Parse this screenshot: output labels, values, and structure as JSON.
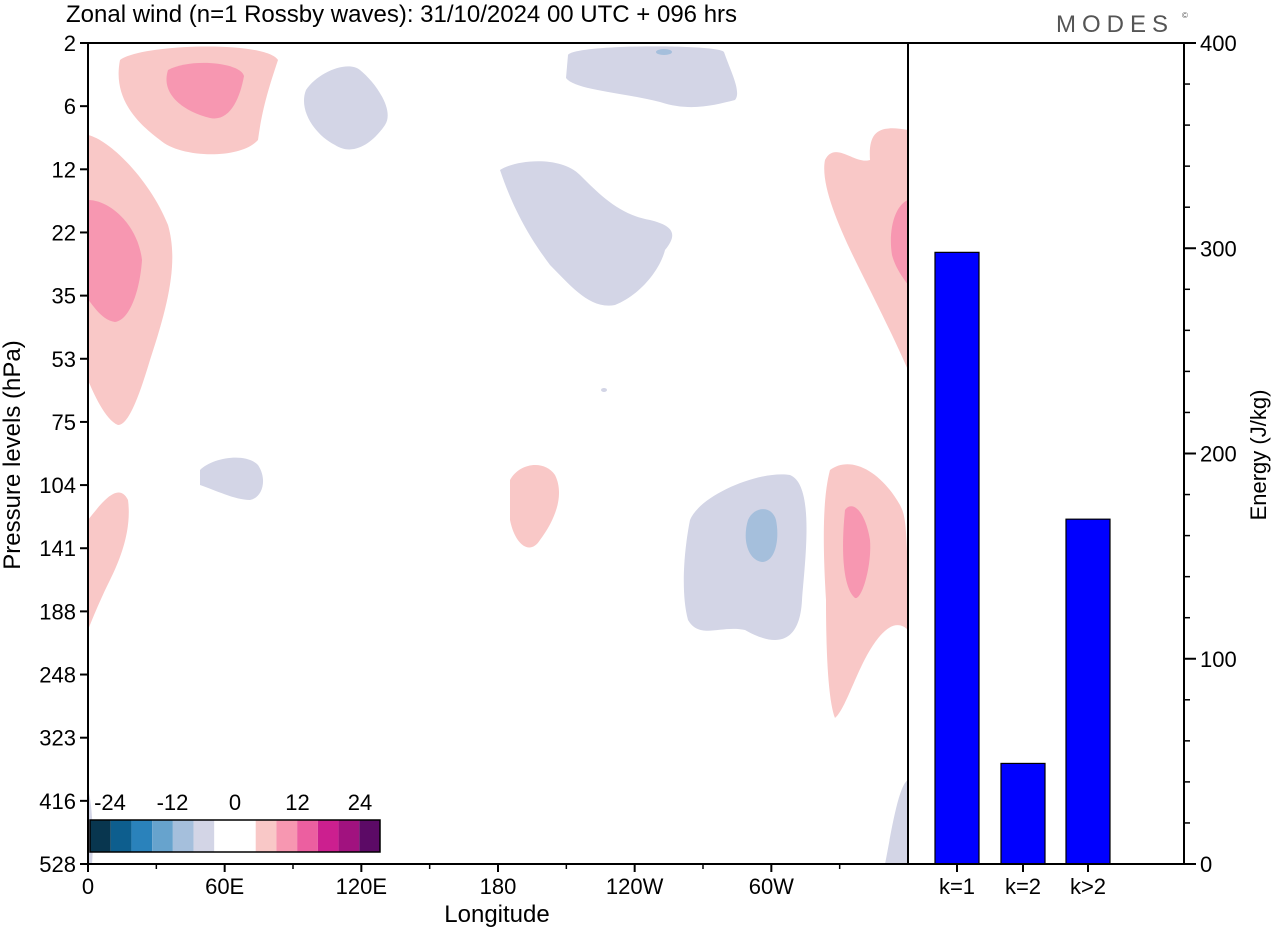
{
  "header": {
    "title": "Zonal wind (n=1 Rossby waves):  31/10/2024  00 UTC  + 096 hrs",
    "brand": "MODES",
    "brand_mark": "©"
  },
  "chart_data": [
    {
      "type": "heatmap",
      "title": "Zonal wind (n=1 Rossby waves):  31/10/2024  00 UTC  + 096 hrs",
      "xlabel": "Longitude",
      "ylabel": "Pressure levels (hPa)",
      "x_ticks": [
        "0",
        "60E",
        "120E",
        "180",
        "120W",
        "60W"
      ],
      "y_ticks": [
        "2",
        "6",
        "12",
        "22",
        "35",
        "53",
        "75",
        "104",
        "141",
        "188",
        "248",
        "323",
        "416",
        "528"
      ],
      "y_scale": "pressure levels, top to bottom",
      "colorbar": {
        "labels": [
          "-24",
          "-12",
          "0",
          "12",
          "24"
        ],
        "colors": [
          "#08364f",
          "#0d5e8e",
          "#2a82bb",
          "#67a3cd",
          "#a5bfdc",
          "#d3d5e6",
          "#ffffff",
          "#ffffff",
          "#f9c8c7",
          "#f797b1",
          "#ec5fa0",
          "#cc1f8f",
          "#a1127f",
          "#5c0a66"
        ]
      },
      "regions": [
        {
          "lon": 27,
          "level": "3-6",
          "sign": "positive",
          "peak_level": 2
        },
        {
          "lon": 95,
          "level": "3-12",
          "sign": "negative",
          "peak_level": 1
        },
        {
          "lon": 8,
          "level": "12-75",
          "sign": "positive",
          "peak_level": 2
        },
        {
          "lon": 205,
          "level": "12-35",
          "sign": "negative",
          "peak_level": 1
        },
        {
          "lon": 300,
          "level": "2-6",
          "sign": "negative",
          "peak_level": 1
        },
        {
          "lon": 352,
          "level": "12-53",
          "sign": "positive",
          "peak_level": 2
        },
        {
          "lon": 195,
          "level": "104-141",
          "sign": "positive",
          "peak_level": 1
        },
        {
          "lon": 305,
          "level": "104-188",
          "sign": "negative",
          "peak_level": 2
        },
        {
          "lon": 340,
          "level": "104-323",
          "sign": "positive",
          "peak_level": 2
        },
        {
          "lon": 5,
          "level": "104-188",
          "sign": "positive",
          "peak_level": 1
        },
        {
          "lon": 65,
          "level": "104",
          "sign": "negative",
          "peak_level": 1
        }
      ]
    },
    {
      "type": "bar",
      "categories": [
        "k=1",
        "k=2",
        "k>2"
      ],
      "values": [
        298,
        49,
        168
      ],
      "ylabel": "Energy (J/kg)",
      "ylim": [
        0,
        400
      ],
      "y_ticks": [
        0,
        100,
        200,
        300,
        400
      ],
      "bar_color": "#0000ff"
    }
  ]
}
